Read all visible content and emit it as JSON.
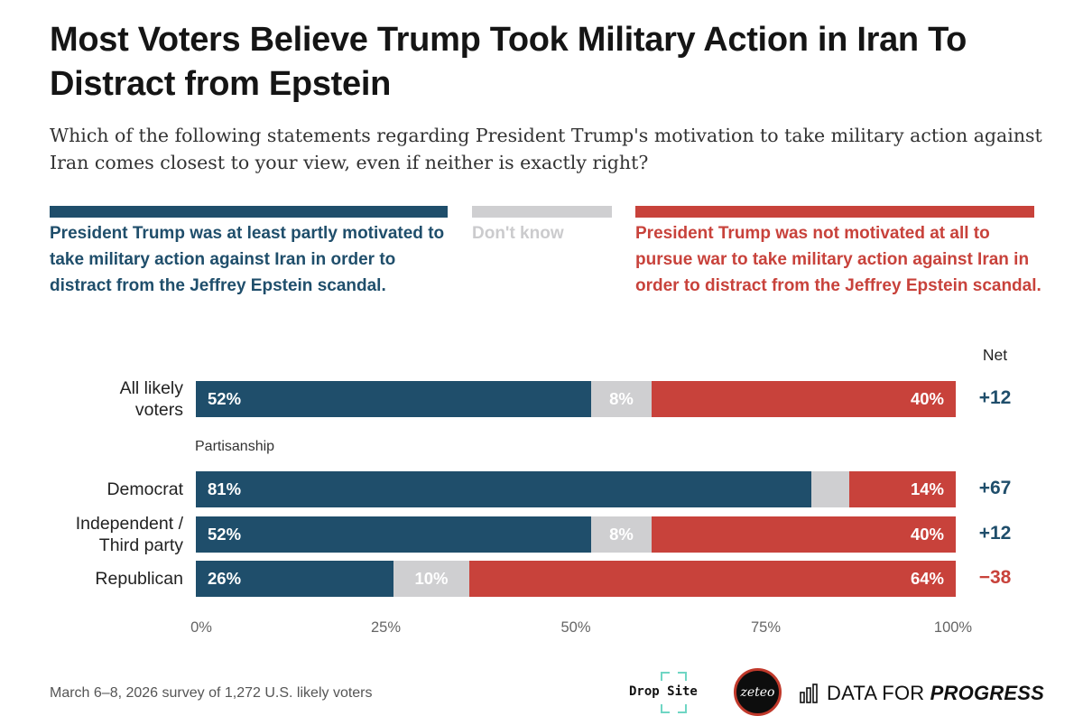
{
  "title": "Most Voters Believe Trump Took Military Action in Iran To Distract from Epstein",
  "subtitle": "Which of the following statements regarding President Trump's motivation to take military action against Iran comes closest to your view, even if neither is exactly right?",
  "colors": {
    "blue": "#1f4e6b",
    "gray": "#cfcfd1",
    "red": "#c8423b",
    "text_blue": "#1f4e6b",
    "text_red": "#c8423b",
    "text_gray": "#cbcbcd"
  },
  "chart_data": {
    "type": "bar",
    "orientation": "horizontal",
    "stacked": true,
    "title": "Most Voters Believe Trump Took Military Action in Iran To Distract from Epstein",
    "series": [
      {
        "name": "President Trump was at least partly motivated to take military action against Iran in order to distract from the Jeffrey Epstein scandal.",
        "color": "#1f4e6b"
      },
      {
        "name": "Don't know",
        "color": "#cfcfd1"
      },
      {
        "name": "President Trump was not motivated at all to pursue war to take military action against Iran in order to distract from the Jeffrey Epstein scandal.",
        "color": "#c8423b"
      }
    ],
    "net_header": "Net",
    "group_label": "Partisanship",
    "rows": [
      {
        "label": "All likely voters",
        "label_lines": [
          "All likely",
          "voters"
        ],
        "values": [
          52,
          8,
          40
        ],
        "value_labels": [
          "52%",
          "8%",
          "40%"
        ],
        "net": "+12",
        "net_color": "#1f4e6b"
      },
      {
        "label": "Democrat",
        "label_lines": [
          "Democrat"
        ],
        "values": [
          81,
          5,
          14
        ],
        "value_labels": [
          "81%",
          "",
          "14%"
        ],
        "net": "+67",
        "net_color": "#1f4e6b"
      },
      {
        "label": "Independent / Third party",
        "label_lines": [
          "Independent /",
          "Third party"
        ],
        "values": [
          52,
          8,
          40
        ],
        "value_labels": [
          "52%",
          "8%",
          "40%"
        ],
        "net": "+12",
        "net_color": "#1f4e6b"
      },
      {
        "label": "Republican",
        "label_lines": [
          "Republican"
        ],
        "values": [
          26,
          10,
          64
        ],
        "value_labels": [
          "26%",
          "10%",
          "64%"
        ],
        "net": "−38",
        "net_color": "#c8423b"
      }
    ],
    "xlim": [
      0,
      100
    ],
    "xticks": [
      0,
      25,
      50,
      75,
      100
    ],
    "xtick_labels": [
      "0%",
      "25%",
      "50%",
      "75%",
      "100%"
    ]
  },
  "footnote": "March 6–8, 2026 survey of 1,272 U.S. likely voters",
  "logos": {
    "dropsite": "Drop Site",
    "zeteo": "zeteo",
    "dfp_regular": "DATA FOR ",
    "dfp_bold": "PROGRESS"
  }
}
